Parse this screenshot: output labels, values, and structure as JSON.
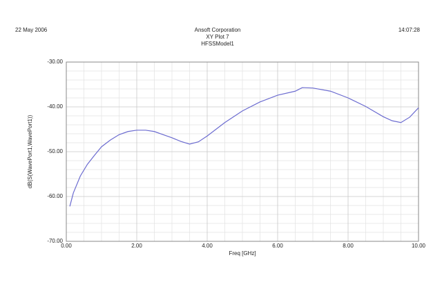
{
  "chart_data": {
    "type": "line",
    "date": "22 May 2006",
    "company": "Ansoft Corporation",
    "title": "XY Plot 7",
    "subtitle": "HFSSModel1",
    "time": "14:07:28",
    "x_label": "Freq [GHz]",
    "y_label": "dB(S(WavePort1,WavePort1))",
    "x": [
      0.1,
      0.2,
      0.4,
      0.6,
      0.8,
      1.0,
      1.25,
      1.5,
      1.75,
      2.0,
      2.25,
      2.5,
      2.75,
      3.0,
      3.25,
      3.5,
      3.75,
      4.0,
      4.5,
      5.0,
      5.5,
      6.0,
      6.5,
      6.7,
      7.0,
      7.5,
      8.0,
      8.5,
      9.0,
      9.25,
      9.5,
      9.75,
      10.0
    ],
    "values": [
      -62.2,
      -59.2,
      -55.4,
      -52.8,
      -50.8,
      -48.9,
      -47.4,
      -46.2,
      -45.5,
      -45.2,
      -45.2,
      -45.5,
      -46.2,
      -46.9,
      -47.7,
      -48.3,
      -47.8,
      -46.5,
      -43.5,
      -40.9,
      -38.9,
      -37.4,
      -36.5,
      -35.7,
      -35.8,
      -36.5,
      -38.0,
      -39.9,
      -42.2,
      -43.1,
      -43.5,
      -42.3,
      -40.2
    ],
    "color": "#6b6bd0",
    "xlim": [
      0,
      10
    ],
    "ylim": [
      -70,
      -30
    ],
    "xticks": [
      {
        "value": 0,
        "label": "0.00"
      },
      {
        "value": 2,
        "label": "2.00"
      },
      {
        "value": 4,
        "label": "4.00"
      },
      {
        "value": 6,
        "label": "6.00"
      },
      {
        "value": 8,
        "label": "8.00"
      },
      {
        "value": 10,
        "label": "10.00"
      }
    ],
    "yticks": [
      {
        "value": -70,
        "label": "-70.00"
      },
      {
        "value": -60,
        "label": "-60.00"
      },
      {
        "value": -50,
        "label": "-50.00"
      },
      {
        "value": -40,
        "label": "-40.00"
      },
      {
        "value": -30,
        "label": "-30.00"
      }
    ],
    "grid": true,
    "x_grid_subdivisions": 4,
    "y_grid_subdivisions": 5
  }
}
